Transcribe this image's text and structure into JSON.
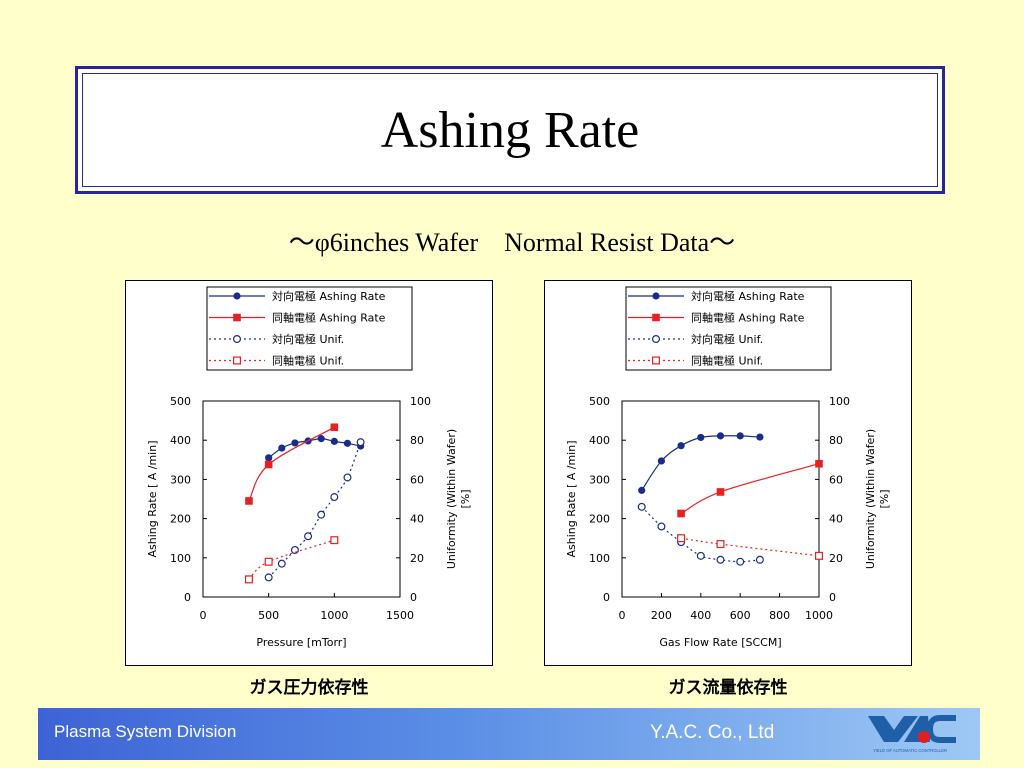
{
  "header": {
    "title": "Ashing Rate",
    "subtitle": "～φ6inches Wafer　Normal Resist Data～"
  },
  "captions": [
    "ガス圧力依存性",
    "ガス流量依存性"
  ],
  "footer": {
    "division": "Plasma System Division",
    "company": "Y.A.C. Co., Ltd",
    "logo_text": "YAC",
    "logo_tagline": "YIELD OF AUTOMATIC CONTROLLER"
  },
  "legend_labels": [
    "対向電極 Ashing Rate",
    "同軸電極 Ashing Rate",
    "対向電極 Unif.",
    "同軸電極 Unif."
  ],
  "colors": {
    "blue": "#1C2C8C",
    "red": "#E82020",
    "footer_start": "#3D63D6",
    "footer_end": "#9EC8F4",
    "logo_blue": "#1F5FA8",
    "logo_red": "#E02020"
  },
  "chart_data": [
    {
      "type": "line",
      "xlabel": "Pressure [mTorr]",
      "ylabel": "Ashing Rate [ A /min]",
      "y2label": "Uniformity (Within Wafer) [%]",
      "xlim": [
        0,
        1500
      ],
      "ylim": [
        0,
        500
      ],
      "y2lim": [
        0,
        100
      ],
      "xticks": [
        "0",
        "500",
        "1000",
        "1500"
      ],
      "yticks": [
        "0",
        "100",
        "200",
        "300",
        "400",
        "500"
      ],
      "y2ticks": [
        "0",
        "20",
        "40",
        "60",
        "80",
        "100"
      ],
      "legend_position": "top",
      "grid": false,
      "series": [
        {
          "name": "対向電極 Ashing Rate",
          "axis": "y",
          "style": "solid-filled-circle",
          "color": "#1C2C8C",
          "x": [
            500,
            600,
            700,
            800,
            900,
            1000,
            1100,
            1200
          ],
          "y": [
            355,
            380,
            393,
            398,
            404,
            397,
            392,
            385
          ]
        },
        {
          "name": "同軸電極 Ashing Rate",
          "axis": "y",
          "style": "solid-filled-square",
          "color": "#E82020",
          "x": [
            350,
            500,
            1000
          ],
          "y": [
            245,
            338,
            433
          ]
        },
        {
          "name": "対向電極 Unif.",
          "axis": "y2",
          "style": "dotted-open-circle",
          "color": "#1C2C8C",
          "x": [
            500,
            600,
            700,
            800,
            900,
            1000,
            1100,
            1200
          ],
          "y": [
            10,
            17,
            24,
            31,
            42,
            51,
            61,
            79
          ]
        },
        {
          "name": "同軸電極 Unif.",
          "axis": "y2",
          "style": "dotted-open-square",
          "color": "#E82020",
          "x": [
            350,
            500,
            1000
          ],
          "y": [
            9,
            18,
            29
          ]
        }
      ]
    },
    {
      "type": "line",
      "xlabel": "Gas Flow Rate [SCCM]",
      "ylabel": "Ashing Rate [ A /min]",
      "y2label": "Uniformity (Within Wafer) [%]",
      "xlim": [
        0,
        1000
      ],
      "ylim": [
        0,
        500
      ],
      "y2lim": [
        0,
        100
      ],
      "xticks": [
        "0",
        "200",
        "400",
        "600",
        "800",
        "1000"
      ],
      "yticks": [
        "0",
        "100",
        "200",
        "300",
        "400",
        "500"
      ],
      "y2ticks": [
        "0",
        "20",
        "40",
        "60",
        "80",
        "100"
      ],
      "legend_position": "top",
      "grid": false,
      "series": [
        {
          "name": "対向電極 Ashing Rate",
          "axis": "y",
          "style": "solid-filled-circle",
          "color": "#1C2C8C",
          "x": [
            100,
            200,
            300,
            400,
            500,
            600,
            700
          ],
          "y": [
            272,
            347,
            386,
            407,
            411,
            411,
            408
          ]
        },
        {
          "name": "同軸電極 Ashing Rate",
          "axis": "y",
          "style": "solid-filled-square",
          "color": "#E82020",
          "x": [
            300,
            500,
            1000
          ],
          "y": [
            213,
            268,
            340
          ]
        },
        {
          "name": "対向電極 Unif.",
          "axis": "y2",
          "style": "dotted-open-circle",
          "color": "#1C2C8C",
          "x": [
            100,
            200,
            300,
            400,
            500,
            600,
            700
          ],
          "y": [
            46,
            36,
            28,
            21,
            19,
            18,
            19
          ]
        },
        {
          "name": "同軸電極 Unif.",
          "axis": "y2",
          "style": "dotted-open-square",
          "color": "#E82020",
          "x": [
            300,
            500,
            1000
          ],
          "y": [
            30,
            27,
            21
          ]
        }
      ]
    }
  ]
}
